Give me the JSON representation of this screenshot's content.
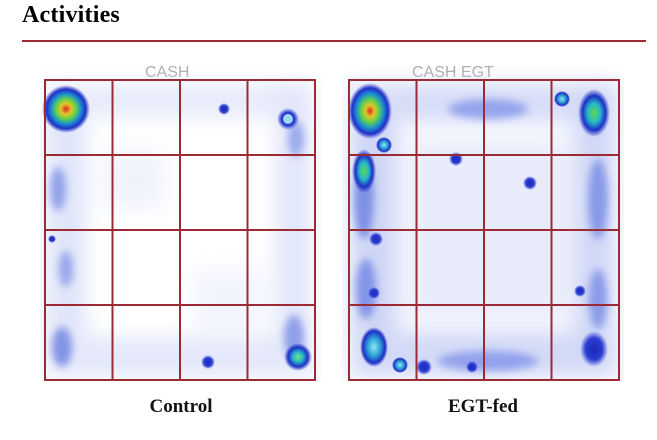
{
  "page": {
    "title": "Activities"
  },
  "panels": [
    {
      "id": "control",
      "caption": "Control",
      "header_text": "C..."
    },
    {
      "id": "egt-fed",
      "caption": "EGT-fed",
      "header_text": "E..."
    }
  ],
  "colors": {
    "title_rule": "#9b2a35",
    "grid_line": "#9b2a35",
    "heat_low": "#c9d3f5",
    "heat_mid": "#1f3cd6",
    "heat_high": "#d7e82a",
    "heat_peak": "#d42a1e"
  },
  "grid": {
    "rows": 4,
    "cols": 4
  }
}
